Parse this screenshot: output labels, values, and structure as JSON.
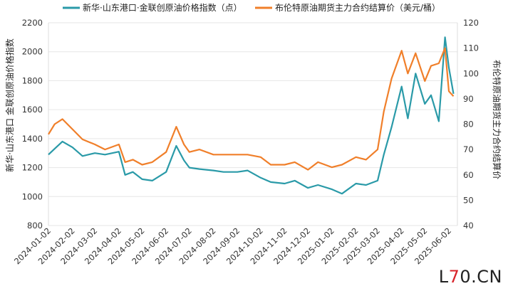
{
  "chart_data": {
    "type": "line",
    "title": "",
    "legend": [
      {
        "name": "新华·山东港口·金联创原油价格指数（点）",
        "color": "#2a9aa8"
      },
      {
        "name": "布伦特原油期货主力合约结算价（美元/桶）",
        "color": "#f07f2a"
      }
    ],
    "legend_position": "top",
    "ylabel_left": "新华·山东港口 金联创原油价格指数",
    "ylabel_right": "布伦特原油期货主力合约结算价",
    "y_left": {
      "min": 800,
      "max": 2200,
      "ticks": [
        800,
        1000,
        1200,
        1400,
        1600,
        1800,
        2000,
        2200
      ]
    },
    "y_right": {
      "min": 40,
      "max": 120,
      "ticks": [
        40,
        50,
        60,
        70,
        80,
        90,
        100,
        110,
        120
      ]
    },
    "x_ticks": [
      "2024-01-02",
      "2024-02-02",
      "2024-03-02",
      "2024-04-02",
      "2024-05-02",
      "2024-06-02",
      "2024-07-02",
      "2024-08-02",
      "2024-09-02",
      "2024-10-02",
      "2024-11-02",
      "2024-12-02",
      "2025-01-02",
      "2025-02-02",
      "2025-03-02",
      "2025-04-02",
      "2025-05-02",
      "2025-06-02"
    ],
    "grid": "horizontal",
    "series": [
      {
        "name": "新华·山东港口·金联创原油价格指数（点）",
        "axis": "left",
        "color": "#2a9aa8",
        "x": [
          "2024-01-02",
          "2024-01-10",
          "2024-01-20",
          "2024-02-02",
          "2024-02-15",
          "2024-03-02",
          "2024-03-15",
          "2024-04-02",
          "2024-04-10",
          "2024-04-20",
          "2024-05-02",
          "2024-05-15",
          "2024-06-02",
          "2024-06-15",
          "2024-06-25",
          "2024-07-02",
          "2024-07-15",
          "2024-08-02",
          "2024-08-15",
          "2024-09-02",
          "2024-09-15",
          "2024-10-02",
          "2024-10-15",
          "2024-11-02",
          "2024-11-15",
          "2024-12-02",
          "2024-12-15",
          "2025-01-02",
          "2025-01-15",
          "2025-02-02",
          "2025-02-15",
          "2025-03-02",
          "2025-03-10",
          "2025-03-20",
          "2025-04-02",
          "2025-04-10",
          "2025-04-20",
          "2025-05-02",
          "2025-05-10",
          "2025-05-20",
          "2025-05-28",
          "2025-06-02",
          "2025-06-08"
        ],
        "y": [
          1290,
          1330,
          1380,
          1340,
          1280,
          1300,
          1290,
          1310,
          1150,
          1170,
          1120,
          1110,
          1170,
          1350,
          1250,
          1200,
          1190,
          1180,
          1170,
          1170,
          1180,
          1130,
          1100,
          1090,
          1110,
          1060,
          1080,
          1050,
          1020,
          1090,
          1080,
          1110,
          1290,
          1480,
          1760,
          1540,
          1850,
          1640,
          1700,
          1520,
          2100,
          1890,
          1710
        ]
      },
      {
        "name": "布伦特原油期货主力合约结算价（美元/桶）",
        "axis": "right",
        "color": "#f07f2a",
        "x": [
          "2024-01-02",
          "2024-01-10",
          "2024-01-20",
          "2024-02-02",
          "2024-02-15",
          "2024-03-02",
          "2024-03-15",
          "2024-04-02",
          "2024-04-10",
          "2024-04-20",
          "2024-05-02",
          "2024-05-15",
          "2024-06-02",
          "2024-06-15",
          "2024-06-25",
          "2024-07-02",
          "2024-07-15",
          "2024-08-02",
          "2024-08-15",
          "2024-09-02",
          "2024-09-15",
          "2024-10-02",
          "2024-10-15",
          "2024-11-02",
          "2024-11-15",
          "2024-12-02",
          "2024-12-15",
          "2025-01-02",
          "2025-01-15",
          "2025-02-02",
          "2025-02-15",
          "2025-03-02",
          "2025-03-10",
          "2025-03-20",
          "2025-04-02",
          "2025-04-10",
          "2025-04-20",
          "2025-05-02",
          "2025-05-10",
          "2025-05-20",
          "2025-05-28",
          "2025-06-02",
          "2025-06-08"
        ],
        "y": [
          76,
          80,
          82,
          78,
          74,
          72,
          70,
          72,
          65,
          66,
          64,
          65,
          69,
          79,
          72,
          69,
          70,
          68,
          68,
          68,
          68,
          67,
          64,
          64,
          65,
          62,
          65,
          63,
          64,
          67,
          66,
          70,
          85,
          98,
          109,
          100,
          108,
          97,
          103,
          104,
          110,
          93,
          91
        ]
      }
    ]
  },
  "watermark": {
    "prefix": "L",
    "highlight": "7",
    "suffix": "0.CN"
  }
}
